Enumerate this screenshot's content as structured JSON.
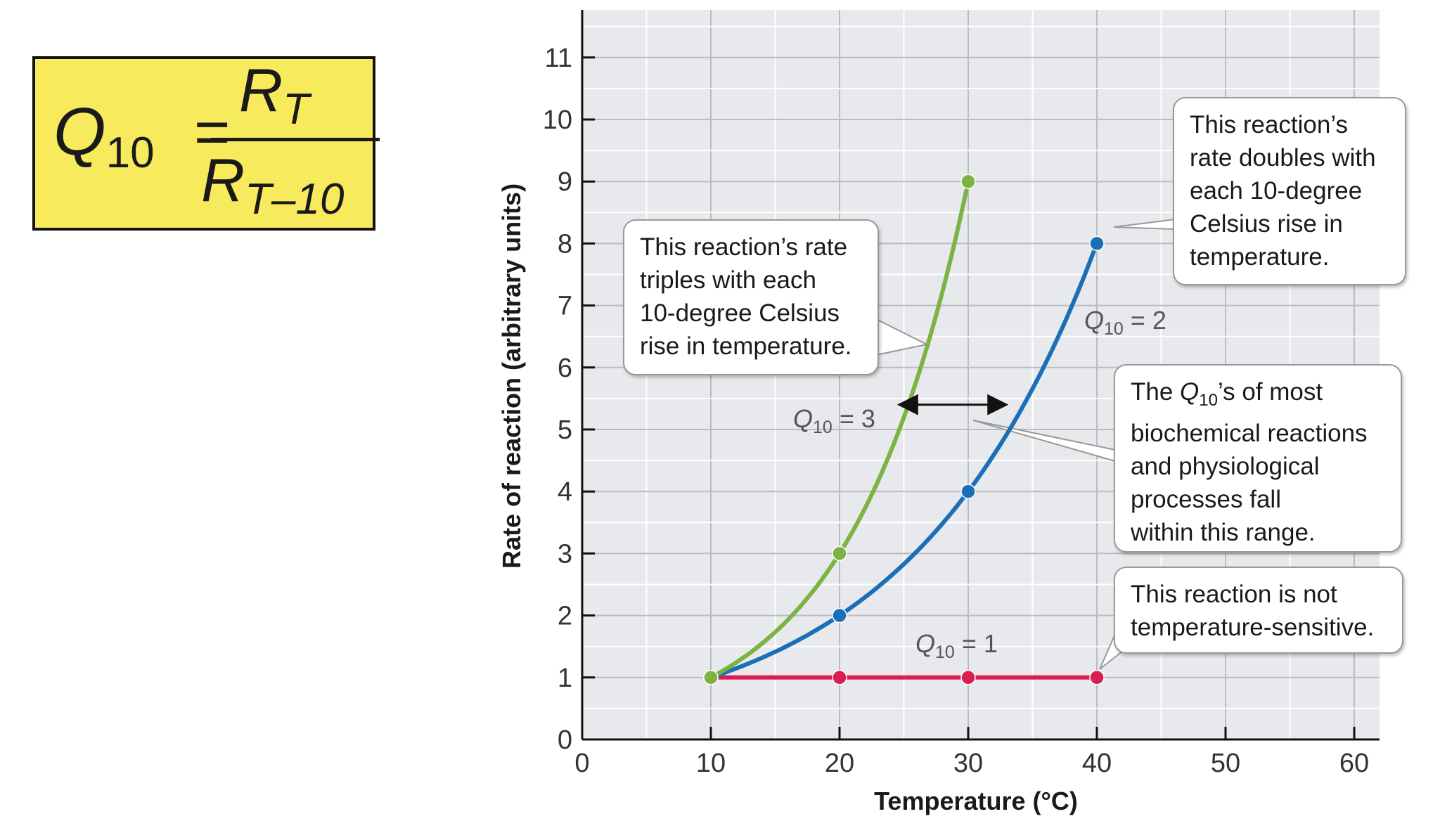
{
  "formula": {
    "lhs": "Q",
    "lhs_sub": "10",
    "equals": "=",
    "numerator": "R",
    "numerator_sub": "T",
    "denominator": "R",
    "denominator_sub": "T–10"
  },
  "chart_data": {
    "type": "line",
    "xlabel": "Temperature (°C)",
    "ylabel": "Rate of reaction (arbitrary units)",
    "xlim": [
      0,
      62
    ],
    "ylim": [
      0,
      11.5
    ],
    "x_ticks": [
      0,
      10,
      20,
      30,
      40,
      50,
      60
    ],
    "y_ticks": [
      0,
      1,
      2,
      3,
      4,
      5,
      6,
      7,
      8,
      9,
      10,
      11
    ],
    "grid": true,
    "series": [
      {
        "name": "Q10 = 3",
        "color": "#7cb342",
        "x": [
          10,
          20,
          30
        ],
        "y": [
          1,
          3,
          9
        ]
      },
      {
        "name": "Q10 = 2",
        "color": "#1a6fb8",
        "x": [
          10,
          20,
          30,
          40
        ],
        "y": [
          1,
          2,
          4,
          8
        ]
      },
      {
        "name": "Q10 = 1",
        "color": "#d81f4f",
        "x": [
          10,
          20,
          30,
          40
        ],
        "y": [
          1,
          1,
          1,
          1
        ]
      }
    ],
    "series_labels": [
      {
        "q": "Q",
        "sub": "10",
        "rest": " = 3"
      },
      {
        "q": "Q",
        "sub": "10",
        "rest": " = 2"
      },
      {
        "q": "Q",
        "sub": "10",
        "rest": " = 1"
      }
    ],
    "range_arrow": {
      "y": 5.4,
      "x_from": 24.8,
      "x_to": 32.8
    }
  },
  "callouts": {
    "triples": [
      "This reaction’s rate",
      "triples with each",
      "10-degree Celsius",
      "rise in temperature."
    ],
    "doubles": [
      "This reaction’s",
      "rate doubles with",
      "each 10-degree",
      "Celsius rise in",
      "temperature."
    ],
    "range_pre": "The ",
    "range_q": "Q",
    "range_sub": "10",
    "range_post": "’s of most",
    "range_lines": [
      "biochemical reactions",
      "and physiological",
      "processes fall",
      "within this range."
    ],
    "not_sensitive": [
      "This reaction is not",
      "temperature-sensitive."
    ]
  }
}
